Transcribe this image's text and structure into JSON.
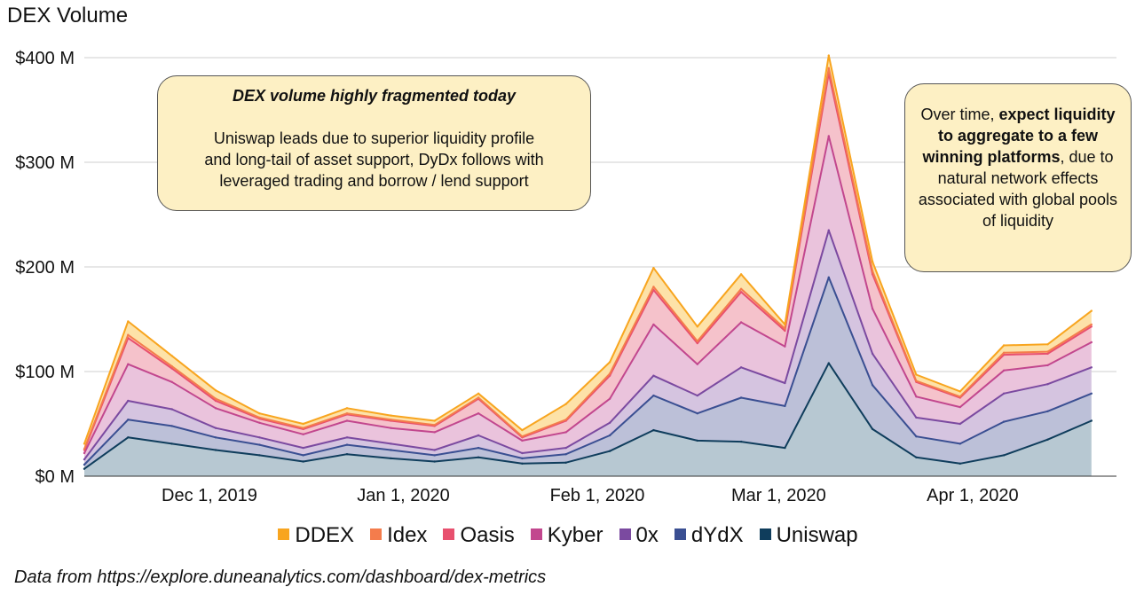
{
  "chart_data": {
    "type": "area",
    "stacked": true,
    "title": "DEX Volume",
    "xlabel": "",
    "ylabel": "",
    "ylim": [
      0,
      400000000
    ],
    "y_ticks": [
      {
        "value": 0,
        "label": "$0 M"
      },
      {
        "value": 100000000,
        "label": "$100 M"
      },
      {
        "value": 200000000,
        "label": "$200 M"
      },
      {
        "value": 300000000,
        "label": "$300 M"
      },
      {
        "value": 400000000,
        "label": "$400 M"
      }
    ],
    "x_ticks": [
      {
        "date": "2019-12-01",
        "label": "Dec 1, 2019"
      },
      {
        "date": "2020-01-01",
        "label": "Jan 1, 2020"
      },
      {
        "date": "2020-02-01",
        "label": "Feb 1, 2020"
      },
      {
        "date": "2020-03-01",
        "label": "Mar 1, 2020"
      },
      {
        "date": "2020-04-01",
        "label": "Apr 1, 2020"
      }
    ],
    "xlim": [
      "2019-11-11",
      "2020-04-24"
    ],
    "x": [
      "2019-11-11",
      "2019-11-18",
      "2019-11-25",
      "2019-12-02",
      "2019-12-09",
      "2019-12-16",
      "2019-12-23",
      "2019-12-30",
      "2020-01-06",
      "2020-01-13",
      "2020-01-20",
      "2020-01-27",
      "2020-02-03",
      "2020-02-10",
      "2020-02-17",
      "2020-02-24",
      "2020-03-02",
      "2020-03-09",
      "2020-03-16",
      "2020-03-23",
      "2020-03-30",
      "2020-04-06",
      "2020-04-13",
      "2020-04-20"
    ],
    "series": [
      {
        "name": "Uniswap",
        "color": "#0f3d5c",
        "fill": "#b7c8d2",
        "values": [
          7,
          37,
          31,
          25,
          20,
          14,
          21,
          17,
          14,
          18,
          12,
          13,
          24,
          44,
          34,
          33,
          27,
          108,
          45,
          18,
          12,
          20,
          35,
          53
        ]
      },
      {
        "name": "dYdX",
        "color": "#3a4f92",
        "fill": "#bcc0d8",
        "values": [
          4,
          17,
          17,
          12,
          10,
          6,
          9,
          8,
          6,
          9,
          5,
          8,
          15,
          33,
          26,
          42,
          40,
          82,
          42,
          20,
          19,
          32,
          27,
          26
        ]
      },
      {
        "name": "0x",
        "color": "#7b4aa0",
        "fill": "#d5c4e0",
        "values": [
          5,
          18,
          16,
          9,
          7,
          7,
          7,
          6,
          5,
          12,
          5,
          6,
          12,
          19,
          17,
          29,
          22,
          45,
          30,
          18,
          19,
          27,
          26,
          25
        ]
      },
      {
        "name": "Kyber",
        "color": "#c2478e",
        "fill": "#eac3dc",
        "values": [
          6,
          35,
          26,
          19,
          14,
          13,
          16,
          15,
          17,
          21,
          12,
          15,
          23,
          49,
          30,
          43,
          35,
          90,
          43,
          20,
          16,
          22,
          18,
          24
        ]
      },
      {
        "name": "Oasis",
        "color": "#e8506e",
        "fill": "#f5c2cb",
        "values": [
          3,
          25,
          13,
          7,
          4,
          5,
          6,
          7,
          6,
          14,
          3,
          11,
          22,
          33,
          20,
          29,
          15,
          60,
          33,
          14,
          9,
          15,
          11,
          15
        ]
      },
      {
        "name": "Idex",
        "color": "#f47c4c",
        "fill": "#fbd0bd",
        "values": [
          1,
          3,
          2,
          2,
          1,
          1,
          1,
          1,
          1,
          1,
          1,
          1,
          2,
          3,
          2,
          3,
          2,
          5,
          3,
          1,
          1,
          2,
          2,
          2
        ]
      },
      {
        "name": "DDEX",
        "color": "#f8a51f",
        "fill": "#fde2a8",
        "values": [
          5,
          13,
          10,
          8,
          4,
          4,
          5,
          4,
          4,
          4,
          6,
          15,
          11,
          18,
          14,
          14,
          4,
          12,
          9,
          6,
          5,
          7,
          7,
          13
        ]
      }
    ],
    "grid": "horizontal",
    "legend": "bottom",
    "annotations": [
      {
        "heading": "DEX volume highly fragmented today",
        "lines": [
          "Uniswap leads due to superior liquidity profile",
          "and long-tail of asset support, DyDx follows with",
          "leveraged trading and borrow / lend support"
        ]
      },
      {
        "parts": [
          "Over time, ",
          "expect liquidity to aggregate to a few winning platforms",
          ", due to natural network effects associated with global pools of liquidity"
        ]
      }
    ],
    "source_note": "Data from https://explore.duneanalytics.com/dashboard/dex-metrics"
  }
}
